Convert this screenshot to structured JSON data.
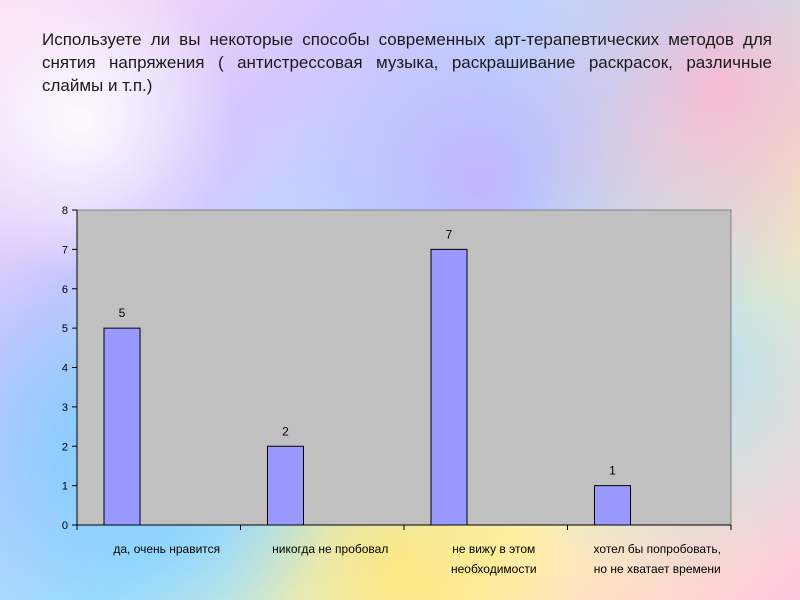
{
  "slide": {
    "title": "Используете ли вы некоторые способы современных арт-терапевтических методов для снятия напряжения ( антистрессовая музыка, раскрашивание раскрасок, различные слаймы и т.п.)"
  },
  "chart_data": {
    "type": "bar",
    "title": "",
    "xlabel": "",
    "ylabel": "",
    "categories": [
      [
        "да, очень нравится"
      ],
      [
        "никогда не пробовал"
      ],
      [
        "не вижу в этом",
        "необходимости"
      ],
      [
        "хотел бы попробовать,",
        "но не хватает времени"
      ]
    ],
    "values": [
      5,
      2,
      7,
      1
    ],
    "ylim": [
      0,
      8
    ],
    "yticks": [
      0,
      1,
      2,
      3,
      4,
      5,
      6,
      7,
      8
    ],
    "grid": false,
    "legend": "none",
    "colors": {
      "plot_background": "#c0c0c0",
      "bar_fill": "#9999ff",
      "bar_stroke": "#000000"
    }
  }
}
